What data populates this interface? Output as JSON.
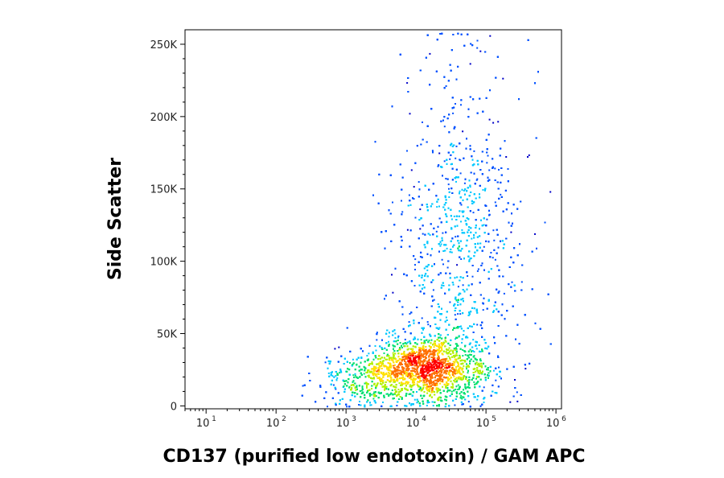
{
  "chart_data": {
    "type": "scatter",
    "subtype": "flow-cytometry density dot plot",
    "xlabel": "CD137 (purified low endotoxin) / GAM APC",
    "ylabel": "Side Scatter",
    "x_scale": "log",
    "x_ticks": [
      {
        "base": "10",
        "exp": "1",
        "value": 10
      },
      {
        "base": "10",
        "exp": "2",
        "value": 100
      },
      {
        "base": "10",
        "exp": "3",
        "value": 1000
      },
      {
        "base": "10",
        "exp": "4",
        "value": 10000
      },
      {
        "base": "10",
        "exp": "5",
        "value": 100000
      },
      {
        "base": "10",
        "exp": "6",
        "value": 1000000
      }
    ],
    "y_scale": "linear",
    "y_ticks": [
      {
        "label": "0",
        "value": 0
      },
      {
        "label": "50K",
        "value": 50000
      },
      {
        "label": "100K",
        "value": 100000
      },
      {
        "label": "150K",
        "value": 150000
      },
      {
        "label": "200K",
        "value": 200000
      },
      {
        "label": "250K",
        "value": 250000
      }
    ],
    "xlim": [
      5,
      1200000
    ],
    "ylim": [
      -2000,
      260000
    ],
    "grid": false,
    "density_colormap": [
      "#0000c8",
      "#0050ff",
      "#00c8ff",
      "#00e070",
      "#b0f000",
      "#ffe000",
      "#ff7000",
      "#ff0000"
    ],
    "populations": [
      {
        "center_log10_x": 4.15,
        "center_y": 27000,
        "sd_log10_x": 0.42,
        "sd_y": 11000,
        "weight": 0.55,
        "description": "dense core (red peak)"
      },
      {
        "center_log10_x": 3.3,
        "center_y": 18000,
        "sd_log10_x": 0.35,
        "sd_y": 9000,
        "weight": 0.12,
        "description": "low-fluorescence shoulder"
      },
      {
        "center_log10_x": 4.6,
        "center_y": 110000,
        "sd_log10_x": 0.45,
        "sd_y": 55000,
        "weight": 0.33,
        "description": "high side-scatter diffuse cloud"
      }
    ]
  }
}
